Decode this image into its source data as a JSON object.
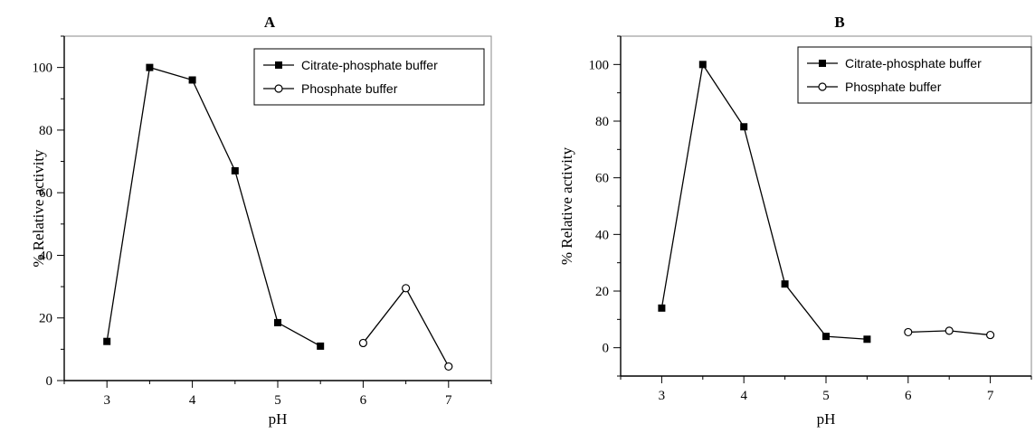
{
  "chart_data": [
    {
      "type": "line",
      "title": "A",
      "xlabel": "pH",
      "ylabel": "% Relative activity",
      "xlim": [
        2.5,
        7.5
      ],
      "ylim": [
        0,
        110
      ],
      "xticks": [
        3,
        4,
        5,
        6,
        7
      ],
      "yticks": [
        0,
        20,
        40,
        60,
        80,
        100
      ],
      "grid": false,
      "legend_position": "top-right",
      "series": [
        {
          "name": "Citrate-phosphate buffer",
          "marker": "filled-square",
          "x": [
            3,
            3.5,
            4,
            4.5,
            5,
            5.5
          ],
          "y": [
            12.5,
            100,
            96,
            67,
            18.5,
            11
          ]
        },
        {
          "name": "Phosphate buffer",
          "marker": "open-circle",
          "x": [
            6,
            6.5,
            7
          ],
          "y": [
            12,
            29.5,
            4.5
          ]
        }
      ]
    },
    {
      "type": "line",
      "title": "B",
      "xlabel": "pH",
      "ylabel": "% Relative activity",
      "xlim": [
        2.5,
        7.5
      ],
      "ylim": [
        -10,
        110
      ],
      "xticks": [
        3,
        4,
        5,
        6,
        7
      ],
      "yticks": [
        0,
        20,
        40,
        60,
        80,
        100
      ],
      "grid": false,
      "legend_position": "top-right",
      "series": [
        {
          "name": "Citrate-phosphate buffer",
          "marker": "filled-square",
          "x": [
            3,
            3.5,
            4,
            4.5,
            5,
            5.5
          ],
          "y": [
            14,
            100,
            78,
            22.5,
            4,
            3
          ]
        },
        {
          "name": "Phosphate buffer",
          "marker": "open-circle",
          "x": [
            6,
            6.5,
            7
          ],
          "y": [
            5.5,
            6,
            4.5
          ]
        }
      ]
    }
  ]
}
